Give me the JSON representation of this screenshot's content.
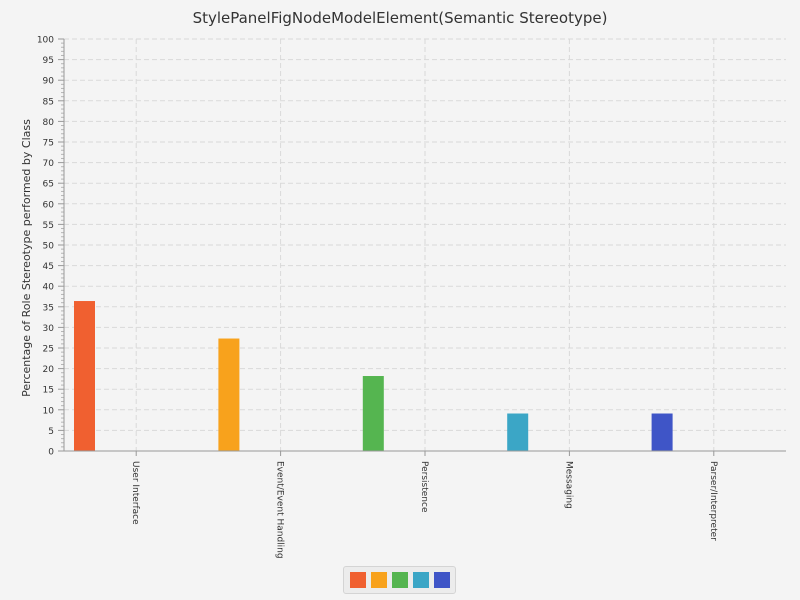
{
  "chart_data": {
    "type": "bar",
    "title": "StylePanelFigNodeModelElement(Semantic Stereotype)",
    "ylabel": "Percentage of Role Stereotype performed by Class",
    "xlabel": "",
    "categories": [
      "User Interface",
      "Event/Event Handling",
      "Persistence",
      "Messaging",
      "Parser/Interpreter"
    ],
    "series": [
      {
        "color": "#f06030",
        "values": [
          36.4,
          null,
          null,
          null,
          null
        ]
      },
      {
        "color": "#f8a21c",
        "values": [
          null,
          27.3,
          null,
          null,
          null
        ]
      },
      {
        "color": "#55b550",
        "values": [
          null,
          null,
          18.2,
          null,
          null
        ]
      },
      {
        "color": "#3ba6c6",
        "values": [
          null,
          null,
          null,
          9.1,
          null
        ]
      },
      {
        "color": "#3f55c7",
        "values": [
          null,
          null,
          null,
          null,
          9.1
        ]
      }
    ],
    "ylim": [
      0,
      100
    ],
    "ytick_step": 5,
    "grid": true,
    "legend_position": "bottom"
  }
}
